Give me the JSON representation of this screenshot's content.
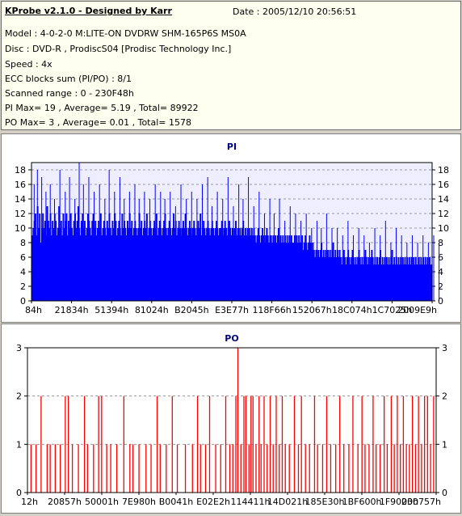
{
  "app": {
    "title": "KProbe v2.1.0 - Designed by Karr",
    "date": "Date : 2005/12/10 20:56:51"
  },
  "info": {
    "model": "Model : 4-0-2-0 M:LITE-ON DVDRW SHM-165P6S MS0A",
    "disc": "Disc : DVD-R , ProdiscS04   [Prodisc Technology Inc.]",
    "speed": "Speed : 4x",
    "ecc": "ECC blocks sum (PI/PO) : 8/1",
    "range": "Scanned range : 0 - 230F48h",
    "pi_stats": "PI Max= 19 , Average= 5.19 , Total= 89922",
    "po_stats": "PO Max= 3 , Average= 0.01 , Total= 1578"
  },
  "colors": {
    "pi_fill": "#0000ff",
    "po_fill": "#ff0000",
    "plot_bg": "#eeeeff",
    "grid": "#9a9a9a",
    "title": "#000080"
  },
  "chart_data": [
    {
      "type": "bar",
      "title": "PI",
      "ylim": [
        0,
        19
      ],
      "yticks": [
        0,
        2,
        4,
        6,
        8,
        10,
        12,
        14,
        16,
        18
      ],
      "xticks": [
        "84h",
        "21834h",
        "51394h",
        "81024h",
        "B2045h",
        "E3E77h",
        "118F66h",
        "152067h",
        "18C074h",
        "1C7025h",
        "2009E9h"
      ],
      "grid": "horizontal dashed",
      "average": 5.19,
      "max": 19,
      "values": [
        9,
        10,
        11,
        12,
        9,
        13,
        10,
        12,
        8,
        10,
        12,
        10,
        11,
        9,
        13,
        11,
        10,
        12,
        9,
        11,
        10,
        12,
        11,
        9,
        10,
        13,
        10,
        11,
        9,
        12,
        10,
        11,
        12,
        9,
        11,
        10,
        12,
        10,
        9,
        11,
        12,
        10,
        11,
        13,
        10,
        9,
        11,
        12,
        10,
        11,
        9,
        10,
        12,
        11,
        10,
        9,
        11,
        12,
        10,
        11,
        9,
        10,
        11,
        10,
        12,
        9,
        10,
        11,
        10,
        9,
        11,
        10,
        12,
        10,
        9,
        11,
        10,
        12,
        11,
        9,
        10,
        11,
        10,
        9,
        12,
        10,
        11,
        10,
        9,
        11,
        10,
        12,
        10,
        11,
        9,
        10,
        11,
        10,
        9,
        10,
        12,
        10,
        11,
        9,
        10,
        11,
        10,
        12,
        9,
        10,
        11,
        10,
        9,
        10,
        11,
        10,
        12,
        9,
        10,
        11,
        10,
        9,
        10,
        11,
        12,
        10,
        9,
        10,
        11,
        10,
        9,
        10,
        12,
        10,
        11,
        9,
        10,
        11,
        10,
        9,
        10,
        11,
        10,
        12,
        10,
        9,
        10,
        11,
        10,
        9,
        10,
        11,
        10,
        9,
        10,
        11,
        10,
        12,
        9,
        10,
        11,
        10,
        9,
        10,
        11,
        10,
        9,
        10,
        11,
        10,
        9,
        10,
        11,
        10,
        9,
        10,
        10,
        11,
        9,
        10,
        11,
        10,
        9,
        10,
        11,
        10,
        9,
        10,
        9,
        10,
        11,
        9,
        10,
        9,
        10,
        9,
        10,
        11,
        9,
        10,
        9,
        10,
        9,
        10,
        9,
        10,
        9,
        10,
        9,
        8,
        9,
        10,
        9,
        8,
        9,
        10,
        9,
        8,
        9,
        10,
        9,
        8,
        9,
        9,
        8,
        9,
        8,
        9,
        8,
        9,
        10,
        8,
        9,
        8,
        9,
        8,
        9,
        8,
        9,
        8,
        9,
        8,
        9,
        8,
        8,
        9,
        8,
        9,
        8,
        9,
        8,
        8,
        9,
        7,
        8,
        9,
        8,
        7,
        8,
        9,
        8,
        7,
        8,
        7,
        6,
        7,
        6,
        7,
        6,
        7,
        8,
        6,
        7,
        6,
        7,
        6,
        7,
        6,
        7,
        6,
        7,
        8,
        6,
        7,
        6,
        7,
        6,
        7,
        6,
        5,
        6,
        7,
        6,
        5,
        6,
        7,
        6,
        5,
        6,
        7,
        6,
        5,
        6,
        5,
        6,
        7,
        6,
        5,
        6,
        5,
        6,
        7,
        6,
        5,
        6,
        5,
        6,
        7,
        6,
        5,
        6,
        5,
        6,
        5,
        6,
        7,
        5,
        6,
        5,
        6,
        5,
        6,
        5,
        6,
        5,
        6,
        7,
        5,
        6,
        5,
        6,
        5,
        6,
        5,
        6,
        5,
        6,
        5,
        6,
        5,
        6,
        5,
        6,
        5,
        6,
        5,
        6,
        5,
        6,
        5,
        5,
        6,
        5,
        6,
        5,
        6,
        5,
        6,
        5,
        6,
        5,
        6,
        5,
        5
      ],
      "spikes": [
        [
          2,
          16
        ],
        [
          5,
          18
        ],
        [
          9,
          17
        ],
        [
          13,
          15
        ],
        [
          17,
          16
        ],
        [
          21,
          14
        ],
        [
          26,
          18
        ],
        [
          31,
          15
        ],
        [
          35,
          17
        ],
        [
          40,
          14
        ],
        [
          44,
          19
        ],
        [
          48,
          16
        ],
        [
          53,
          17
        ],
        [
          58,
          15
        ],
        [
          63,
          16
        ],
        [
          68,
          14
        ],
        [
          72,
          18
        ],
        [
          77,
          15
        ],
        [
          82,
          17
        ],
        [
          86,
          14
        ],
        [
          91,
          15
        ],
        [
          96,
          16
        ],
        [
          100,
          14
        ],
        [
          105,
          15
        ],
        [
          110,
          14
        ],
        [
          115,
          16
        ],
        [
          120,
          15
        ],
        [
          124,
          14
        ],
        [
          129,
          15
        ],
        [
          134,
          13
        ],
        [
          139,
          16
        ],
        [
          144,
          14
        ],
        [
          149,
          15
        ],
        [
          154,
          14
        ],
        [
          159,
          16
        ],
        [
          164,
          17
        ],
        [
          168,
          13
        ],
        [
          173,
          15
        ],
        [
          178,
          14
        ],
        [
          183,
          17
        ],
        [
          188,
          13
        ],
        [
          193,
          16
        ],
        [
          197,
          14
        ],
        [
          202,
          17
        ],
        [
          207,
          13
        ],
        [
          212,
          15
        ],
        [
          217,
          12
        ],
        [
          222,
          14
        ],
        [
          226,
          12
        ],
        [
          231,
          14
        ],
        [
          236,
          11
        ],
        [
          241,
          13
        ],
        [
          246,
          12
        ],
        [
          251,
          11
        ],
        [
          256,
          12
        ],
        [
          261,
          10
        ],
        [
          266,
          11
        ],
        [
          270,
          10
        ],
        [
          275,
          12
        ],
        [
          280,
          10
        ],
        [
          285,
          10
        ],
        [
          290,
          9
        ],
        [
          295,
          11
        ],
        [
          300,
          9
        ],
        [
          305,
          10
        ],
        [
          310,
          9
        ],
        [
          315,
          8
        ],
        [
          320,
          10
        ],
        [
          325,
          9
        ],
        [
          330,
          11
        ],
        [
          335,
          8
        ],
        [
          340,
          10
        ],
        [
          345,
          9
        ],
        [
          350,
          8
        ],
        [
          355,
          9
        ],
        [
          360,
          8
        ],
        [
          365,
          9
        ],
        [
          370,
          8
        ],
        [
          375,
          9
        ],
        [
          380,
          8
        ]
      ]
    },
    {
      "type": "bar",
      "title": "PO",
      "ylim": [
        0,
        3
      ],
      "yticks": [
        0,
        1,
        2,
        3
      ],
      "xticks": [
        "12h",
        "20857h",
        "50001h",
        "7E980h",
        "B0041h",
        "E02E2h",
        "114411h",
        "14D021h",
        "185E30h",
        "1BF600h",
        "1F9000h",
        "230757h"
      ],
      "grid": "horizontal dashed",
      "average": 0.01,
      "max": 3,
      "events": [
        [
          3,
          1
        ],
        [
          8,
          1
        ],
        [
          13,
          2
        ],
        [
          19,
          1
        ],
        [
          22,
          1
        ],
        [
          27,
          1
        ],
        [
          32,
          1
        ],
        [
          37,
          2
        ],
        [
          40,
          2
        ],
        [
          44,
          1
        ],
        [
          50,
          1
        ],
        [
          56,
          2
        ],
        [
          59,
          1
        ],
        [
          65,
          1
        ],
        [
          70,
          2
        ],
        [
          73,
          2
        ],
        [
          78,
          1
        ],
        [
          82,
          1
        ],
        [
          88,
          1
        ],
        [
          95,
          2
        ],
        [
          101,
          1
        ],
        [
          104,
          1
        ],
        [
          110,
          1
        ],
        [
          117,
          1
        ],
        [
          122,
          1
        ],
        [
          128,
          2
        ],
        [
          131,
          1
        ],
        [
          137,
          1
        ],
        [
          143,
          2
        ],
        [
          148,
          1
        ],
        [
          156,
          1
        ],
        [
          163,
          1
        ],
        [
          168,
          2
        ],
        [
          171,
          1
        ],
        [
          176,
          1
        ],
        [
          180,
          2
        ],
        [
          186,
          1
        ],
        [
          191,
          1
        ],
        [
          196,
          2
        ],
        [
          200,
          1
        ],
        [
          203,
          1
        ],
        [
          206,
          2
        ],
        [
          208,
          3
        ],
        [
          211,
          1
        ],
        [
          214,
          2
        ],
        [
          216,
          2
        ],
        [
          219,
          1
        ],
        [
          221,
          2
        ],
        [
          223,
          2
        ],
        [
          226,
          1
        ],
        [
          229,
          2
        ],
        [
          231,
          1
        ],
        [
          234,
          2
        ],
        [
          237,
          1
        ],
        [
          240,
          2
        ],
        [
          243,
          1
        ],
        [
          246,
          2
        ],
        [
          249,
          1
        ],
        [
          252,
          2
        ],
        [
          255,
          1
        ],
        [
          259,
          1
        ],
        [
          264,
          2
        ],
        [
          268,
          1
        ],
        [
          271,
          2
        ],
        [
          275,
          1
        ],
        [
          279,
          1
        ],
        [
          284,
          2
        ],
        [
          287,
          1
        ],
        [
          292,
          1
        ],
        [
          296,
          2
        ],
        [
          300,
          1
        ],
        [
          305,
          1
        ],
        [
          309,
          2
        ],
        [
          313,
          1
        ],
        [
          318,
          1
        ],
        [
          322,
          2
        ],
        [
          327,
          1
        ],
        [
          331,
          2
        ],
        [
          334,
          1
        ],
        [
          338,
          1
        ],
        [
          342,
          2
        ],
        [
          345,
          1
        ],
        [
          349,
          1
        ],
        [
          353,
          2
        ],
        [
          356,
          1
        ],
        [
          360,
          2
        ],
        [
          363,
          1
        ],
        [
          366,
          2
        ],
        [
          369,
          1
        ],
        [
          372,
          2
        ],
        [
          375,
          1
        ],
        [
          378,
          1
        ],
        [
          381,
          2
        ],
        [
          384,
          1
        ],
        [
          387,
          2
        ],
        [
          390,
          1
        ],
        [
          393,
          2
        ],
        [
          396,
          2
        ],
        [
          399,
          1
        ],
        [
          402,
          2
        ]
      ]
    }
  ]
}
